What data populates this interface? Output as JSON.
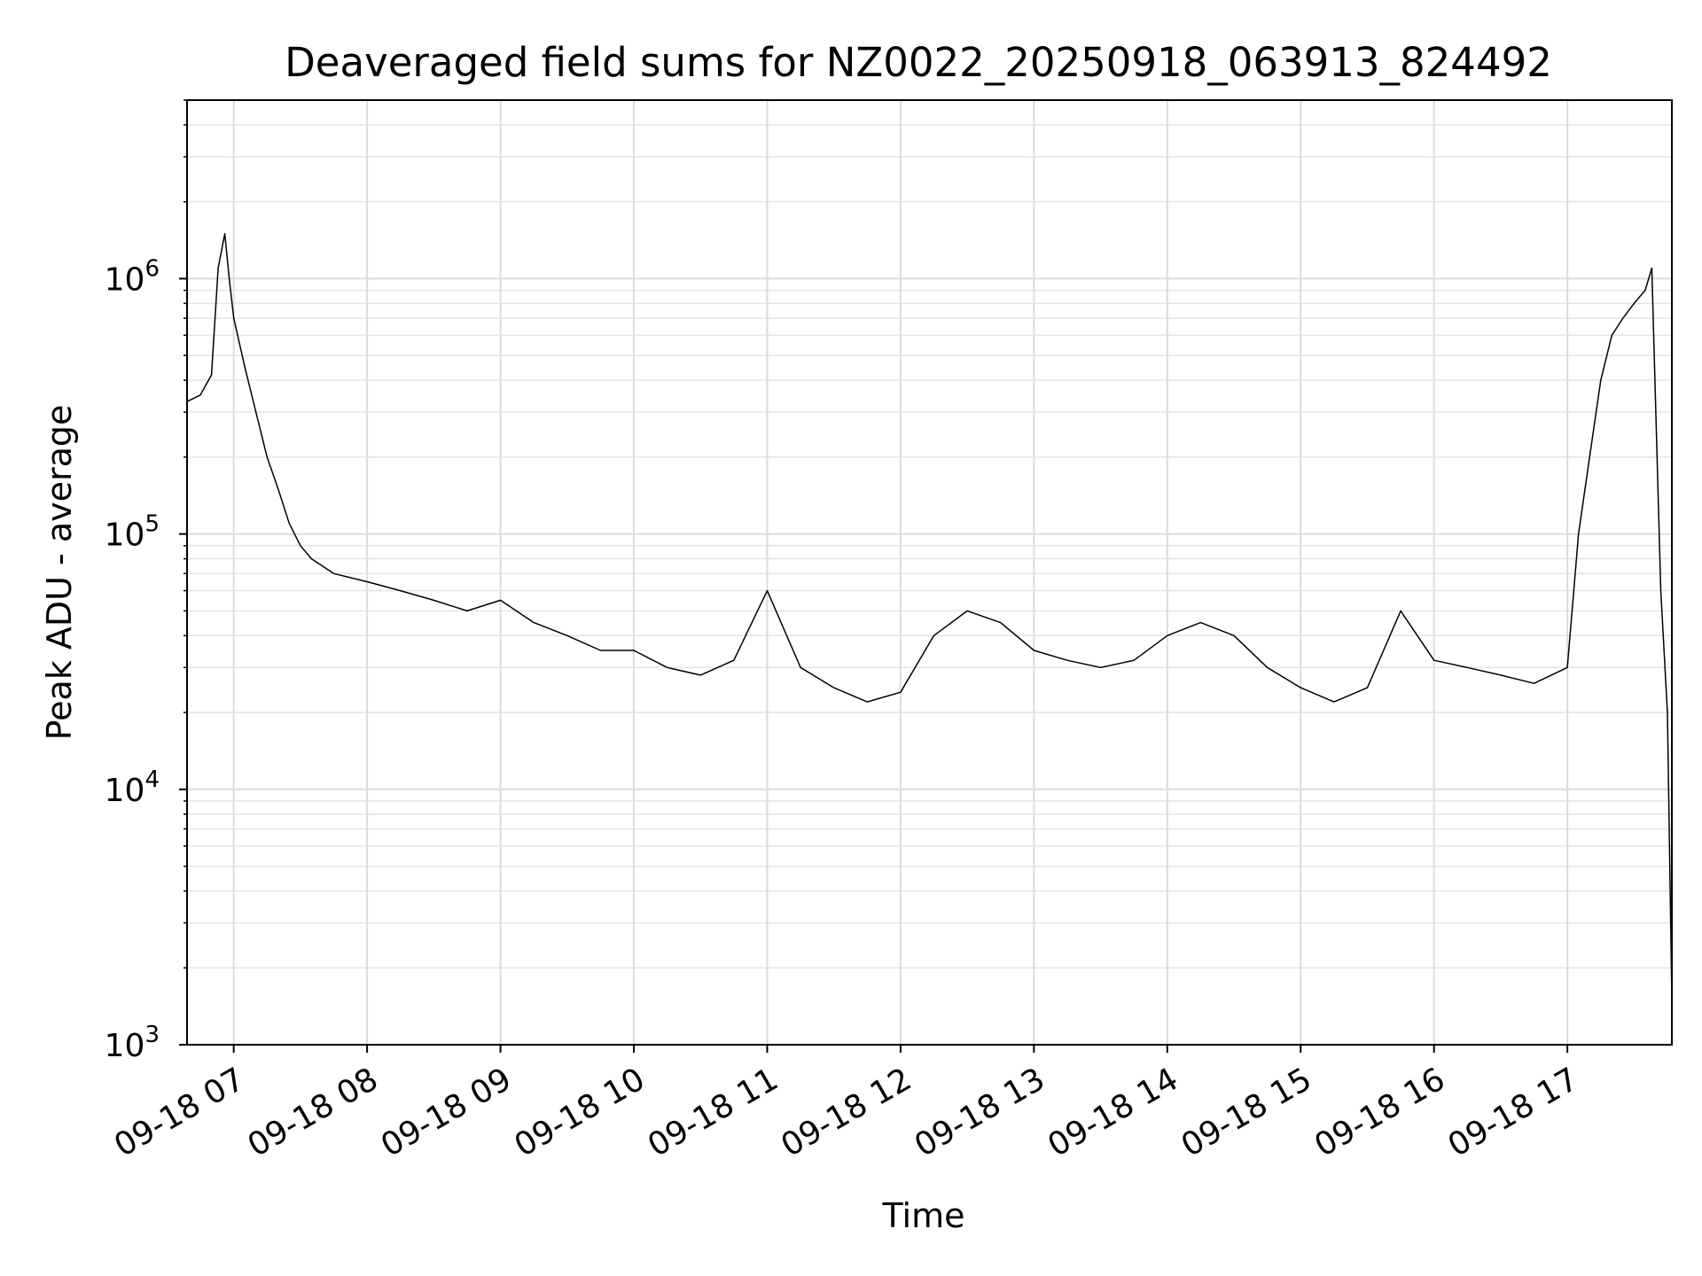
{
  "chart_data": {
    "type": "line",
    "title": "Deaveraged field sums for NZ0022_20250918_063913_824492",
    "xlabel": "Time",
    "ylabel": "Peak ADU - average",
    "y_scale": "log",
    "ylim": [
      1000,
      5000000
    ],
    "xlim": [
      "09-18 06:39",
      "09-18 17:47"
    ],
    "grid": true,
    "legend": "none",
    "line_color": "#000000",
    "x_tick_labels": [
      "09-18 07",
      "09-18 08",
      "09-18 09",
      "09-18 10",
      "09-18 11",
      "09-18 12",
      "09-18 13",
      "09-18 14",
      "09-18 15",
      "09-18 16",
      "09-18 17"
    ],
    "y_tick_labels": [
      {
        "base": "10",
        "exp": "3"
      },
      {
        "base": "10",
        "exp": "4"
      },
      {
        "base": "10",
        "exp": "5"
      },
      {
        "base": "10",
        "exp": "6"
      }
    ],
    "series": [
      {
        "x": [
          "09-18 06:39",
          "09-18 06:45",
          "09-18 06:50",
          "09-18 06:53",
          "09-18 06:56",
          "09-18 06:58",
          "09-18 07:00",
          "09-18 07:05",
          "09-18 07:10",
          "09-18 07:15",
          "09-18 07:20",
          "09-18 07:25",
          "09-18 07:30",
          "09-18 07:35",
          "09-18 07:45",
          "09-18 08:00",
          "09-18 08:15",
          "09-18 08:30",
          "09-18 08:45",
          "09-18 09:00",
          "09-18 09:15",
          "09-18 09:30",
          "09-18 09:45",
          "09-18 10:00",
          "09-18 10:15",
          "09-18 10:30",
          "09-18 10:45",
          "09-18 11:00",
          "09-18 11:15",
          "09-18 11:30",
          "09-18 11:45",
          "09-18 12:00",
          "09-18 12:15",
          "09-18 12:30",
          "09-18 12:45",
          "09-18 13:00",
          "09-18 13:15",
          "09-18 13:30",
          "09-18 13:45",
          "09-18 14:00",
          "09-18 14:15",
          "09-18 14:30",
          "09-18 14:45",
          "09-18 15:00",
          "09-18 15:15",
          "09-18 15:30",
          "09-18 15:45",
          "09-18 16:00",
          "09-18 16:15",
          "09-18 16:30",
          "09-18 16:45",
          "09-18 17:00",
          "09-18 17:05",
          "09-18 17:10",
          "09-18 17:15",
          "09-18 17:20",
          "09-18 17:25",
          "09-18 17:30",
          "09-18 17:35",
          "09-18 17:38",
          "09-18 17:42",
          "09-18 17:45",
          "09-18 17:47"
        ],
        "y": [
          330000,
          350000,
          420000,
          1100000,
          1500000,
          1000000,
          700000,
          450000,
          300000,
          200000,
          150000,
          110000,
          90000,
          80000,
          70000,
          65000,
          60000,
          55000,
          50000,
          55000,
          45000,
          40000,
          35000,
          35000,
          30000,
          28000,
          32000,
          60000,
          30000,
          25000,
          22000,
          24000,
          40000,
          50000,
          45000,
          35000,
          32000,
          30000,
          32000,
          40000,
          45000,
          40000,
          30000,
          25000,
          22000,
          25000,
          50000,
          32000,
          30000,
          28000,
          26000,
          30000,
          100000,
          200000,
          400000,
          600000,
          700000,
          800000,
          900000,
          1100000,
          60000,
          20000,
          1500
        ]
      }
    ]
  }
}
